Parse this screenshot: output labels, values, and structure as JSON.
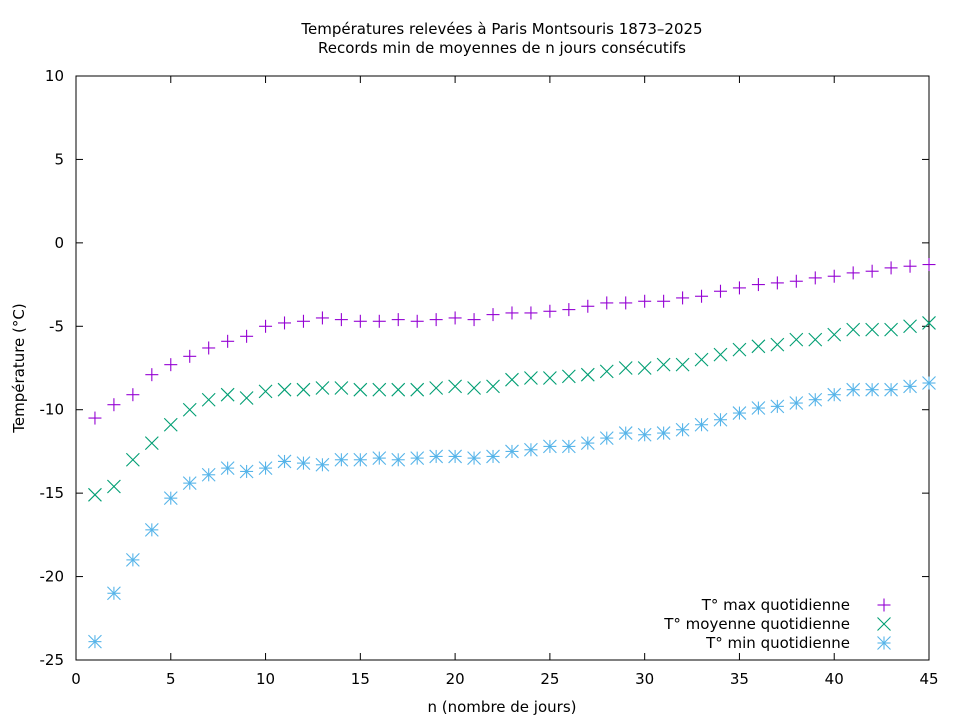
{
  "chart_data": {
    "type": "scatter",
    "title": "Températures relevées à Paris Montsouris 1873–2025",
    "subtitle": "Records min de moyennes de n jours consécutifs",
    "xlabel": "n (nombre de jours)",
    "ylabel": "Température (°C)",
    "xlim": [
      0,
      45
    ],
    "ylim": [
      -25,
      10
    ],
    "xticks": [
      0,
      5,
      10,
      15,
      20,
      25,
      30,
      35,
      40,
      45
    ],
    "yticks": [
      -25,
      -20,
      -15,
      -10,
      -5,
      0,
      5,
      10
    ],
    "grid": false,
    "legend_position": "bottom-right",
    "x": [
      1,
      2,
      3,
      4,
      5,
      6,
      7,
      8,
      9,
      10,
      11,
      12,
      13,
      14,
      15,
      16,
      17,
      18,
      19,
      20,
      21,
      22,
      23,
      24,
      25,
      26,
      27,
      28,
      29,
      30,
      31,
      32,
      33,
      34,
      35,
      36,
      37,
      38,
      39,
      40,
      41,
      42,
      43,
      44,
      45
    ],
    "series": [
      {
        "name": "T° max quotidienne",
        "marker": "plus",
        "color": "#9400d3",
        "values": [
          -10.5,
          -9.7,
          -9.1,
          -7.9,
          -7.3,
          -6.8,
          -6.3,
          -5.9,
          -5.6,
          -5.0,
          -4.8,
          -4.7,
          -4.5,
          -4.6,
          -4.7,
          -4.7,
          -4.6,
          -4.7,
          -4.6,
          -4.5,
          -4.6,
          -4.3,
          -4.2,
          -4.2,
          -4.1,
          -4.0,
          -3.8,
          -3.6,
          -3.6,
          -3.5,
          -3.5,
          -3.3,
          -3.2,
          -2.9,
          -2.7,
          -2.5,
          -2.4,
          -2.3,
          -2.1,
          -2.0,
          -1.8,
          -1.7,
          -1.5,
          -1.4,
          -1.3
        ]
      },
      {
        "name": "T° moyenne quotidienne",
        "marker": "cross",
        "color": "#009e73",
        "values": [
          -15.1,
          -14.6,
          -13.0,
          -12.0,
          -10.9,
          -10.0,
          -9.4,
          -9.1,
          -9.3,
          -8.9,
          -8.8,
          -8.8,
          -8.7,
          -8.7,
          -8.8,
          -8.8,
          -8.8,
          -8.8,
          -8.7,
          -8.6,
          -8.7,
          -8.6,
          -8.2,
          -8.1,
          -8.1,
          -8.0,
          -7.9,
          -7.7,
          -7.5,
          -7.5,
          -7.3,
          -7.3,
          -7.0,
          -6.7,
          -6.4,
          -6.2,
          -6.1,
          -5.8,
          -5.8,
          -5.5,
          -5.2,
          -5.2,
          -5.2,
          -5.0,
          -4.8
        ]
      },
      {
        "name": "T° min quotidienne",
        "marker": "star",
        "color": "#56b4e9",
        "values": [
          -23.9,
          -21.0,
          -19.0,
          -17.2,
          -15.3,
          -14.4,
          -13.9,
          -13.5,
          -13.7,
          -13.5,
          -13.1,
          -13.2,
          -13.3,
          -13.0,
          -13.0,
          -12.9,
          -13.0,
          -12.9,
          -12.8,
          -12.8,
          -12.9,
          -12.8,
          -12.5,
          -12.4,
          -12.2,
          -12.2,
          -12.0,
          -11.7,
          -11.4,
          -11.5,
          -11.4,
          -11.2,
          -10.9,
          -10.6,
          -10.2,
          -9.9,
          -9.8,
          -9.6,
          -9.4,
          -9.1,
          -8.8,
          -8.8,
          -8.8,
          -8.6,
          -8.4
        ]
      }
    ]
  }
}
